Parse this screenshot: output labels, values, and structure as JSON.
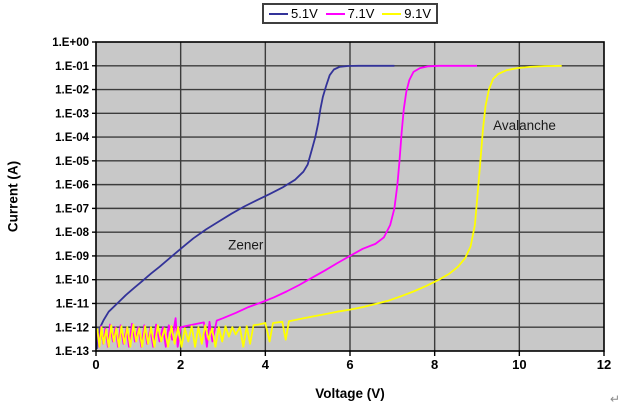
{
  "artifacts": {
    "return_mark": "↵"
  },
  "chart_data": {
    "type": "line",
    "title": "",
    "xlabel": "Voltage (V)",
    "ylabel": "Current (A)",
    "x_axis": {
      "min": 0,
      "max": 12,
      "ticks": [
        0,
        2,
        4,
        6,
        8,
        10,
        12
      ]
    },
    "y_axis": {
      "scale": "log",
      "min": 1e-13,
      "max": 1,
      "tick_labels": [
        "1.E+00",
        "1.E-01",
        "1.E-02",
        "1.E-03",
        "1.E-04",
        "1.E-05",
        "1.E-06",
        "1.E-07",
        "1.E-08",
        "1.E-09",
        "1.E-10",
        "1.E-11",
        "1.E-12",
        "1.E-13"
      ]
    },
    "grid": true,
    "legend_position": "top-center",
    "plot_bg_color": "#c8c8c8",
    "gridline_color": "#3c3c3c",
    "annotations": [
      {
        "text": "Zener",
        "v": 3.12,
        "i": 2.9e-09
      },
      {
        "text": "Avalanche",
        "v": 9.38,
        "i": 0.00031
      }
    ],
    "series": [
      {
        "name": "5.1V",
        "color": "#333399",
        "points": [
          [
            0.02,
            1.2e-13
          ],
          [
            0.04,
            9e-13
          ],
          [
            0.07,
            1.8e-13
          ],
          [
            0.1,
            1e-12
          ],
          [
            0.18,
            2e-12
          ],
          [
            0.3,
            4.5e-12
          ],
          [
            0.5,
            1e-11
          ],
          [
            0.7,
            2.2e-11
          ],
          [
            0.9,
            4.5e-11
          ],
          [
            1.1,
            9e-11
          ],
          [
            1.3,
            1.8e-10
          ],
          [
            1.5,
            3.5e-10
          ],
          [
            1.7,
            7e-10
          ],
          [
            1.9,
            1.4e-09
          ],
          [
            2.1,
            2.8e-09
          ],
          [
            2.3,
            5.5e-09
          ],
          [
            2.6,
            1.3e-08
          ],
          [
            2.9,
            2.8e-08
          ],
          [
            3.2,
            6e-08
          ],
          [
            3.5,
            1.2e-07
          ],
          [
            3.8,
            2.2e-07
          ],
          [
            4.1,
            4e-07
          ],
          [
            4.4,
            7.5e-07
          ],
          [
            4.7,
            1.6e-06
          ],
          [
            4.9,
            3.5e-06
          ],
          [
            5.0,
            7e-06
          ],
          [
            5.1,
            3e-05
          ],
          [
            5.18,
            0.0001
          ],
          [
            5.25,
            0.0004
          ],
          [
            5.3,
            0.0015
          ],
          [
            5.36,
            0.005
          ],
          [
            5.44,
            0.015
          ],
          [
            5.52,
            0.04
          ],
          [
            5.62,
            0.07
          ],
          [
            5.75,
            0.09
          ],
          [
            5.95,
            0.098
          ],
          [
            6.2,
            0.1
          ],
          [
            7.05,
            0.1
          ]
        ]
      },
      {
        "name": "7.1V",
        "color": "#ff00ff",
        "points": [
          [
            0.03,
            8e-13
          ],
          [
            0.07,
            1.5e-13
          ],
          [
            0.12,
            1.1e-12
          ],
          [
            0.17,
            2e-13
          ],
          [
            0.22,
            9e-13
          ],
          [
            0.28,
            1.5e-13
          ],
          [
            0.33,
            1.3e-12
          ],
          [
            0.4,
            2.5e-13
          ],
          [
            0.46,
            1e-12
          ],
          [
            0.52,
            1.5e-13
          ],
          [
            0.58,
            1.2e-12
          ],
          [
            0.65,
            2e-13
          ],
          [
            0.72,
            9e-13
          ],
          [
            0.78,
            1.5e-13
          ],
          [
            0.85,
            1.4e-12
          ],
          [
            0.92,
            2.5e-13
          ],
          [
            1.0,
            1e-12
          ],
          [
            1.07,
            1.5e-13
          ],
          [
            1.14,
            1.2e-12
          ],
          [
            1.21,
            2e-13
          ],
          [
            1.28,
            9e-13
          ],
          [
            1.35,
            1.5e-13
          ],
          [
            1.42,
            1.3e-12
          ],
          [
            1.5,
            2.5e-13
          ],
          [
            1.58,
            1e-12
          ],
          [
            1.65,
            1.5e-13
          ],
          [
            1.72,
            1.2e-12
          ],
          [
            1.8,
            3e-13
          ],
          [
            1.88,
            2.4e-12
          ],
          [
            1.93,
            1.5e-13
          ],
          [
            2.0,
            1e-12
          ],
          [
            2.1,
            1.1e-12
          ],
          [
            2.3,
            1.3e-12
          ],
          [
            2.55,
            1.6e-12
          ],
          [
            2.62,
            1.5e-13
          ],
          [
            2.68,
            1.7e-12
          ],
          [
            2.75,
            2.5e-13
          ],
          [
            2.85,
            1.9e-12
          ],
          [
            3.0,
            2.4e-12
          ],
          [
            3.3,
            4e-12
          ],
          [
            3.6,
            7e-12
          ],
          [
            3.9,
            1.1e-11
          ],
          [
            4.2,
            1.8e-11
          ],
          [
            4.5,
            3.2e-11
          ],
          [
            4.8,
            6e-11
          ],
          [
            5.1,
            1.2e-10
          ],
          [
            5.4,
            2.4e-10
          ],
          [
            5.7,
            5e-10
          ],
          [
            6.0,
            1e-09
          ],
          [
            6.3,
            2e-09
          ],
          [
            6.6,
            3.2e-09
          ],
          [
            6.8,
            6e-09
          ],
          [
            6.95,
            2e-08
          ],
          [
            7.05,
            1e-07
          ],
          [
            7.12,
            1e-06
          ],
          [
            7.17,
            1e-05
          ],
          [
            7.22,
            0.00015
          ],
          [
            7.27,
            0.0015
          ],
          [
            7.33,
            0.008
          ],
          [
            7.4,
            0.025
          ],
          [
            7.5,
            0.055
          ],
          [
            7.65,
            0.08
          ],
          [
            7.85,
            0.095
          ],
          [
            8.1,
            0.1
          ],
          [
            9.0,
            0.1
          ]
        ]
      },
      {
        "name": "9.1V",
        "color": "#ffff00",
        "points": [
          [
            0.03,
            9e-13
          ],
          [
            0.08,
            1.5e-13
          ],
          [
            0.13,
            1e-12
          ],
          [
            0.18,
            2e-13
          ],
          [
            0.24,
            8e-13
          ],
          [
            0.3,
            1.5e-13
          ],
          [
            0.36,
            1.2e-12
          ],
          [
            0.42,
            2.5e-13
          ],
          [
            0.48,
            9e-13
          ],
          [
            0.54,
            1.5e-13
          ],
          [
            0.6,
            1.1e-12
          ],
          [
            0.67,
            2e-13
          ],
          [
            0.74,
            1e-12
          ],
          [
            0.81,
            1.5e-13
          ],
          [
            0.88,
            1.3e-12
          ],
          [
            0.95,
            2.5e-13
          ],
          [
            1.02,
            9e-13
          ],
          [
            1.09,
            1.5e-13
          ],
          [
            1.16,
            1.1e-12
          ],
          [
            1.23,
            2e-13
          ],
          [
            1.3,
            1e-12
          ],
          [
            1.38,
            1.5e-13
          ],
          [
            1.46,
            1.2e-12
          ],
          [
            1.54,
            2.5e-13
          ],
          [
            1.62,
            9e-13
          ],
          [
            1.7,
            1.5e-13
          ],
          [
            1.78,
            1.1e-12
          ],
          [
            1.86,
            2e-13
          ],
          [
            1.94,
            1e-12
          ],
          [
            2.02,
            1.5e-13
          ],
          [
            2.1,
            9e-13
          ],
          [
            2.18,
            2.5e-13
          ],
          [
            2.26,
            1.1e-12
          ],
          [
            2.34,
            1.5e-13
          ],
          [
            2.42,
            1e-12
          ],
          [
            2.5,
            2e-13
          ],
          [
            2.58,
            1.2e-12
          ],
          [
            2.66,
            3e-13
          ],
          [
            2.74,
            9e-13
          ],
          [
            2.82,
            1.5e-13
          ],
          [
            2.9,
            1e-12
          ],
          [
            2.98,
            2.5e-13
          ],
          [
            3.06,
            1.1e-12
          ],
          [
            3.14,
            4e-13
          ],
          [
            3.22,
            1e-12
          ],
          [
            3.3,
            5e-13
          ],
          [
            3.4,
            1e-12
          ],
          [
            3.48,
            1.5e-13
          ],
          [
            3.56,
            1.1e-12
          ],
          [
            3.64,
            2e-13
          ],
          [
            3.72,
            1.2e-12
          ],
          [
            3.85,
            1.3e-12
          ],
          [
            4.0,
            1.5e-12
          ],
          [
            4.1,
            2.5e-13
          ],
          [
            4.18,
            1.5e-12
          ],
          [
            4.4,
            1.7e-12
          ],
          [
            4.48,
            3e-13
          ],
          [
            4.56,
            1.8e-12
          ],
          [
            4.8,
            2.2e-12
          ],
          [
            5.1,
            2.8e-12
          ],
          [
            5.4,
            3.5e-12
          ],
          [
            5.7,
            4.5e-12
          ],
          [
            6.0,
            5.5e-12
          ],
          [
            6.3,
            7e-12
          ],
          [
            6.6,
            9.5e-12
          ],
          [
            6.9,
            1.3e-11
          ],
          [
            7.2,
            2e-11
          ],
          [
            7.5,
            3.2e-11
          ],
          [
            7.8,
            5.5e-11
          ],
          [
            8.1,
            1e-10
          ],
          [
            8.35,
            1.8e-10
          ],
          [
            8.55,
            3.5e-10
          ],
          [
            8.72,
            8e-10
          ],
          [
            8.85,
            2.5e-09
          ],
          [
            8.95,
            2e-08
          ],
          [
            9.02,
            5e-07
          ],
          [
            9.08,
            1e-05
          ],
          [
            9.14,
            0.0002
          ],
          [
            9.2,
            0.002
          ],
          [
            9.28,
            0.01
          ],
          [
            9.38,
            0.028
          ],
          [
            9.5,
            0.045
          ],
          [
            9.7,
            0.065
          ],
          [
            9.95,
            0.08
          ],
          [
            10.25,
            0.09
          ],
          [
            10.6,
            0.097
          ],
          [
            11.0,
            0.1
          ]
        ]
      }
    ]
  }
}
